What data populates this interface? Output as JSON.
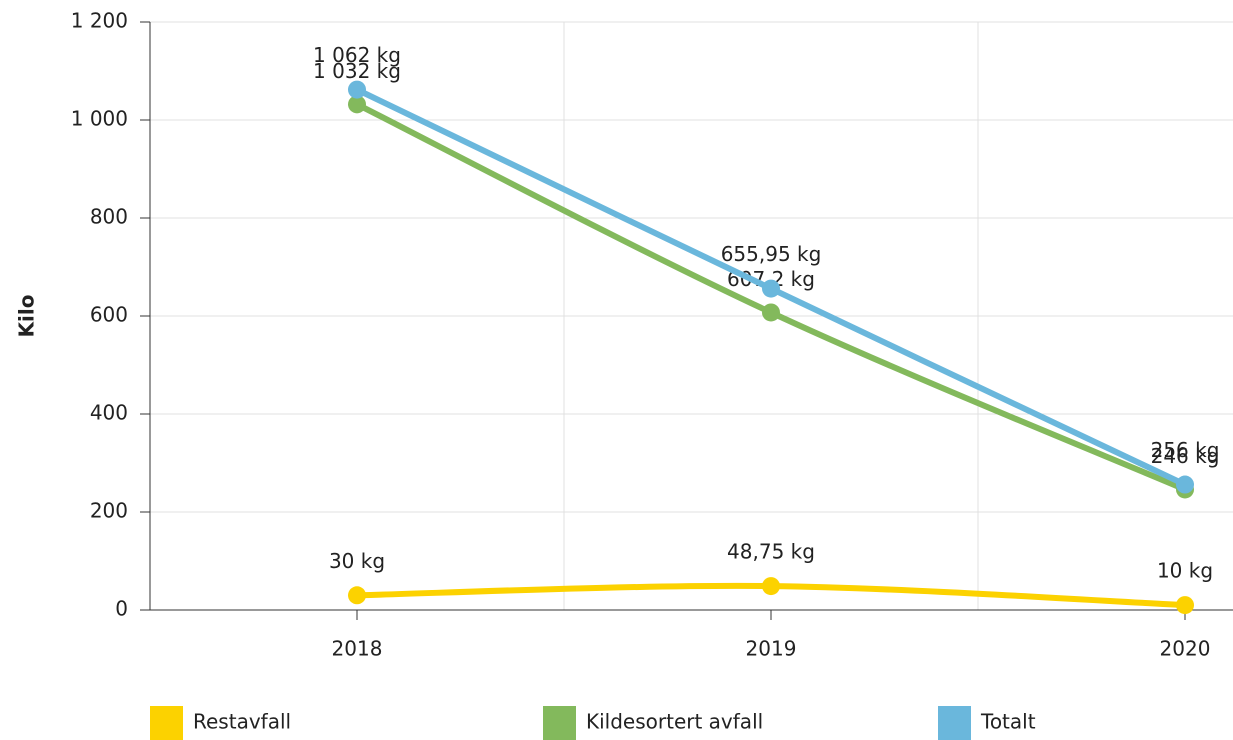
{
  "chart_data": {
    "type": "line",
    "y_label": "Kilo",
    "categories": [
      "2018",
      "2019",
      "2020"
    ],
    "ylim": [
      0,
      1200
    ],
    "yticks": [
      0,
      200,
      400,
      600,
      800,
      {
        "value": 1000,
        "label": "1 000"
      },
      {
        "value": 1200,
        "label": "1 200"
      }
    ],
    "grid": true,
    "legend": "bottom",
    "series": [
      {
        "name": "Restavfall",
        "color": "#fcd200",
        "values": [
          30,
          48.75,
          10
        ],
        "value_labels": [
          "30 kg",
          "48,75 kg",
          "10 kg"
        ]
      },
      {
        "name": "Kildesortert avfall",
        "color": "#83b95c",
        "values": [
          1032,
          607.2,
          246
        ],
        "value_labels": [
          "1 032 kg",
          "607,2 kg",
          "246 kg"
        ]
      },
      {
        "name": "Totalt",
        "color": "#6ab7dc",
        "values": [
          1062,
          655.95,
          256
        ],
        "value_labels": [
          "1 062 kg",
          "655,95 kg",
          "256 kg"
        ]
      }
    ]
  }
}
